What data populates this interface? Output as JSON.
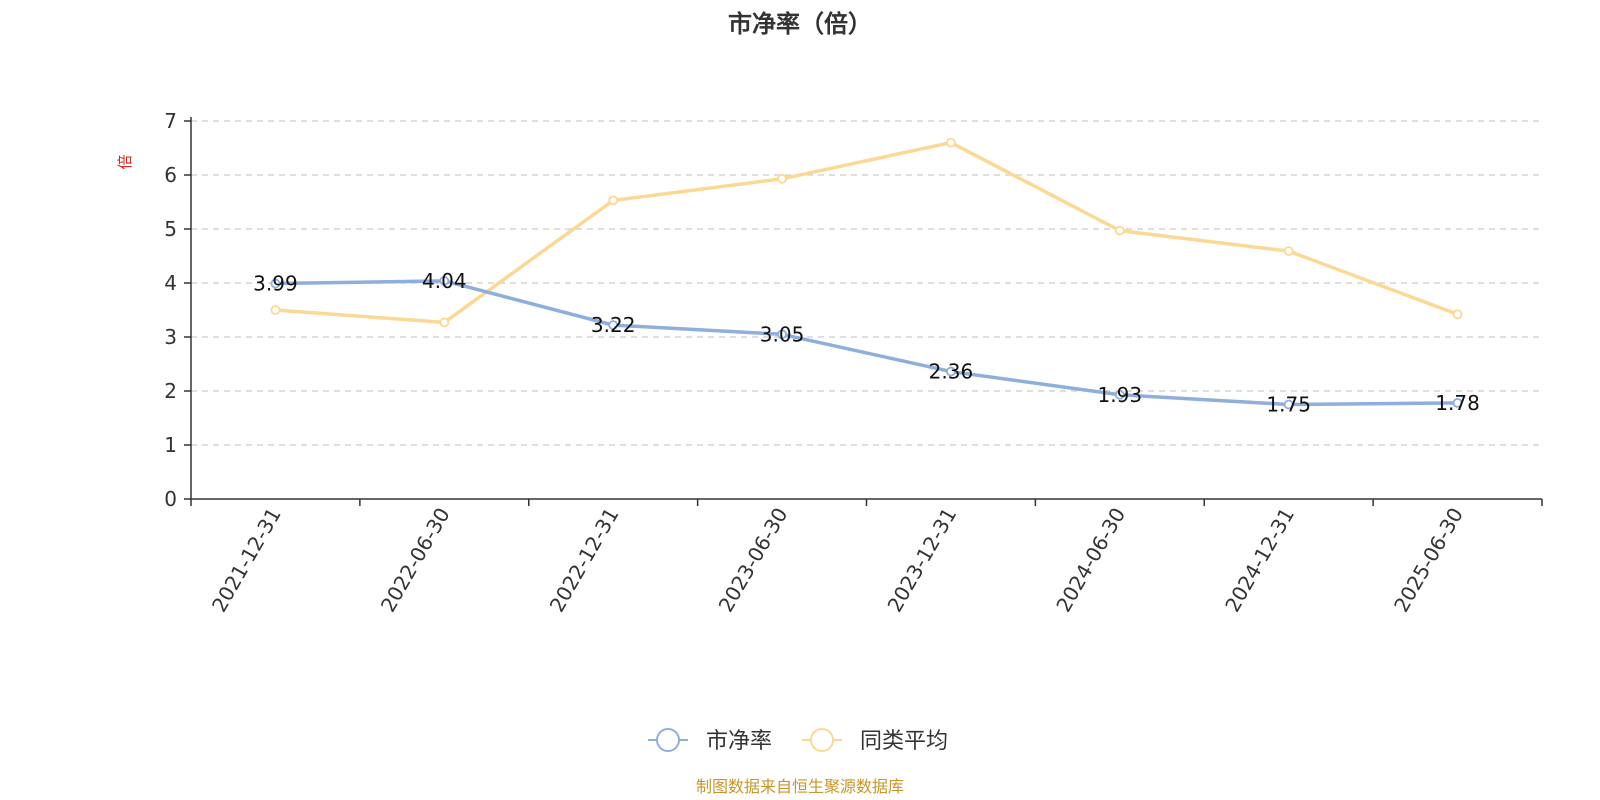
{
  "chart_data": {
    "type": "line",
    "title": "市净率（倍）",
    "ylabel": "倍",
    "ylim": [
      0,
      7
    ],
    "yticks": [
      0,
      1,
      2,
      3,
      4,
      5,
      6,
      7
    ],
    "grid": true,
    "legend_position": "bottom-center",
    "categories": [
      "2021-12-31",
      "2022-06-30",
      "2022-12-31",
      "2023-06-30",
      "2023-12-31",
      "2024-06-30",
      "2024-12-31",
      "2025-06-30"
    ],
    "series": [
      {
        "name": "市净率",
        "color": "#8eaedb",
        "values": [
          3.99,
          4.04,
          3.22,
          3.05,
          2.36,
          1.93,
          1.75,
          1.78
        ],
        "labels": [
          "3.99",
          "4.04",
          "3.22",
          "3.05",
          "2.36",
          "1.93",
          "1.75",
          "1.78"
        ]
      },
      {
        "name": "同类平均",
        "color": "#fcd896",
        "values": [
          3.5,
          3.27,
          5.53,
          5.93,
          6.6,
          4.97,
          4.59,
          3.42
        ]
      }
    ],
    "source_note": "制图数据来自恒生聚源数据库",
    "source_color": "#c8962a",
    "ylabel_color": "#e02020"
  }
}
